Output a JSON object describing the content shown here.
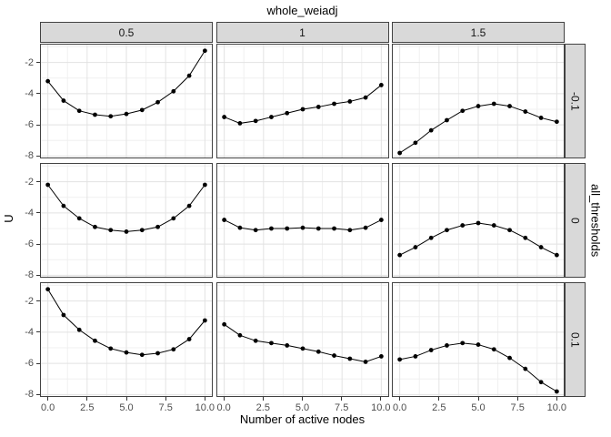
{
  "figure": {
    "top_facet_title": "whole_weiadj",
    "right_facet_title": "all_thresholds",
    "y_axis_title": "U",
    "x_axis_title": "Number of active nodes"
  },
  "chart_data": {
    "type": "line",
    "title": "whole_weiadj",
    "xlabel": "Number of active nodes",
    "ylabel": "U",
    "facet": {
      "col_var": "whole_weiadj",
      "col_levels": [
        "0.5",
        "1",
        "1.5"
      ],
      "row_var": "all_thresholds",
      "row_levels": [
        "-0.1",
        "0",
        "0.1"
      ]
    },
    "x": [
      0,
      1,
      2,
      3,
      4,
      5,
      6,
      7,
      8,
      9,
      10
    ],
    "x_tick_labels": [
      "0.0",
      "2.5",
      "5.0",
      "7.5",
      "10.0"
    ],
    "x_tick_values": [
      0,
      2.5,
      5,
      7.5,
      10
    ],
    "y_tick_labels": [
      "-2",
      "-4",
      "-6",
      "-8"
    ],
    "y_tick_values": [
      -2,
      -4,
      -6,
      -8
    ],
    "xlim": [
      -0.5,
      10.5
    ],
    "ylim": [
      -8.15,
      -0.8
    ],
    "grid": {
      "x_step": 1.25,
      "y_step": 1,
      "x_major_step": 2.5,
      "y_major_step": 2
    },
    "panels": [
      {
        "row": "-0.1",
        "col": "0.5",
        "y": [
          -3.2,
          -4.45,
          -5.1,
          -5.35,
          -5.45,
          -5.3,
          -5.05,
          -4.55,
          -3.85,
          -2.85,
          -1.25
        ]
      },
      {
        "row": "-0.1",
        "col": "1",
        "y": [
          -5.5,
          -5.9,
          -5.75,
          -5.5,
          -5.25,
          -5.0,
          -4.85,
          -4.65,
          -4.5,
          -4.25,
          -3.45
        ]
      },
      {
        "row": "-0.1",
        "col": "1.5",
        "y": [
          -7.8,
          -7.15,
          -6.35,
          -5.7,
          -5.1,
          -4.8,
          -4.65,
          -4.8,
          -5.15,
          -5.55,
          -5.8
        ]
      },
      {
        "row": "0",
        "col": "0.5",
        "y": [
          -2.2,
          -3.55,
          -4.35,
          -4.9,
          -5.1,
          -5.2,
          -5.1,
          -4.9,
          -4.35,
          -3.55,
          -2.2
        ]
      },
      {
        "row": "0",
        "col": "1",
        "y": [
          -4.45,
          -4.95,
          -5.1,
          -5.0,
          -5.0,
          -4.95,
          -5.0,
          -5.0,
          -5.1,
          -4.95,
          -4.45
        ]
      },
      {
        "row": "0",
        "col": "1.5",
        "y": [
          -6.7,
          -6.2,
          -5.6,
          -5.1,
          -4.8,
          -4.65,
          -4.8,
          -5.1,
          -5.6,
          -6.2,
          -6.7
        ]
      },
      {
        "row": "0.1",
        "col": "0.5",
        "y": [
          -1.25,
          -2.9,
          -3.85,
          -4.55,
          -5.05,
          -5.3,
          -5.45,
          -5.35,
          -5.1,
          -4.45,
          -3.25
        ]
      },
      {
        "row": "0.1",
        "col": "1",
        "y": [
          -3.5,
          -4.2,
          -4.55,
          -4.7,
          -4.85,
          -5.05,
          -5.25,
          -5.5,
          -5.7,
          -5.9,
          -5.55
        ]
      },
      {
        "row": "0.1",
        "col": "1.5",
        "y": [
          -5.75,
          -5.55,
          -5.15,
          -4.85,
          -4.7,
          -4.8,
          -5.1,
          -5.65,
          -6.35,
          -7.2,
          -7.8
        ]
      }
    ],
    "colors": {
      "line": "#000000",
      "point": "#000000",
      "panel_border": "#424242",
      "strip_bg": "#d9d9d9",
      "grid_major": "#e2e2e2",
      "grid_minor": "#f0f0f0",
      "tick_label": "#4d4d4d",
      "tick_mark": "#333333",
      "background": "#ffffff"
    },
    "legend": "none",
    "point_radius": 2.4
  }
}
